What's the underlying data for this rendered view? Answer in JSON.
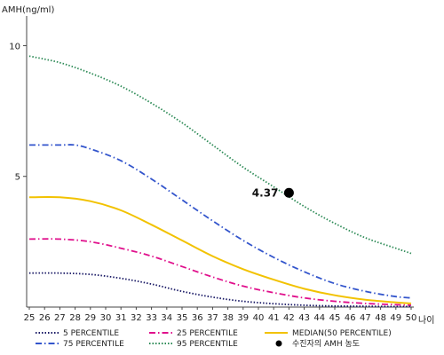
{
  "chart_data": {
    "type": "line",
    "ylabel": "AMH(ng/ml)",
    "xlabel": "나이",
    "xlim": [
      25,
      50
    ],
    "ylim": [
      0,
      11
    ],
    "x_ticks": [
      25,
      26,
      27,
      28,
      29,
      30,
      31,
      32,
      33,
      34,
      35,
      36,
      37,
      38,
      39,
      40,
      41,
      42,
      43,
      44,
      45,
      46,
      47,
      48,
      49,
      50
    ],
    "y_ticks": [
      5,
      10
    ],
    "grid": false,
    "legend_position": "bottom",
    "series": [
      {
        "name": "95 PERCENTILE",
        "color": "#2e8b57",
        "dash": "dotted",
        "x": [
          25,
          27,
          29,
          31,
          33,
          35,
          37,
          39,
          41,
          43,
          45,
          47,
          49,
          50
        ],
        "y": [
          9.6,
          9.35,
          8.95,
          8.45,
          7.8,
          7.05,
          6.2,
          5.35,
          4.6,
          3.85,
          3.2,
          2.65,
          2.25,
          2.05
        ]
      },
      {
        "name": "75 PERCENTILE",
        "color": "#3355cc",
        "dash": "dashdot",
        "x": [
          25,
          27,
          28,
          29,
          31,
          33,
          35,
          37,
          39,
          41,
          43,
          45,
          47,
          49,
          50
        ],
        "y": [
          6.2,
          6.2,
          6.2,
          6.05,
          5.6,
          4.9,
          4.1,
          3.3,
          2.55,
          1.9,
          1.35,
          0.9,
          0.6,
          0.4,
          0.35
        ]
      },
      {
        "name": "MEDIAN(50 PERCENTILE)",
        "color": "#f2c200",
        "dash": "solid",
        "x": [
          25,
          27,
          29,
          31,
          33,
          35,
          37,
          39,
          41,
          43,
          45,
          47,
          49,
          50
        ],
        "y": [
          4.2,
          4.2,
          4.05,
          3.7,
          3.15,
          2.55,
          1.95,
          1.45,
          1.05,
          0.7,
          0.45,
          0.28,
          0.18,
          0.14
        ]
      },
      {
        "name": "25 PERCENTILE",
        "color": "#e0108c",
        "dash": "dashdot",
        "x": [
          25,
          27,
          29,
          31,
          33,
          35,
          37,
          39,
          41,
          43,
          45,
          47,
          49,
          50
        ],
        "y": [
          2.6,
          2.6,
          2.5,
          2.25,
          1.95,
          1.55,
          1.15,
          0.8,
          0.55,
          0.35,
          0.22,
          0.14,
          0.09,
          0.07
        ]
      },
      {
        "name": "5 PERCENTILE",
        "color": "#1a1a66",
        "dash": "dotted",
        "x": [
          25,
          27,
          29,
          31,
          33,
          35,
          37,
          39,
          41,
          43,
          45,
          47,
          49,
          50
        ],
        "y": [
          1.3,
          1.3,
          1.25,
          1.1,
          0.88,
          0.6,
          0.38,
          0.22,
          0.13,
          0.07,
          0.04,
          0.03,
          0.02,
          0.02
        ]
      }
    ],
    "annotations": [
      {
        "name": "수진자의 AMH 농도",
        "x": 42,
        "y": 4.37,
        "label": "4.37",
        "marker": "circle",
        "color": "#000000"
      }
    ],
    "legend": [
      {
        "label": "5 PERCENTILE",
        "color": "#1a1a66",
        "dash": "dotted"
      },
      {
        "label": "25 PERCENTILE",
        "color": "#e0108c",
        "dash": "dashdot"
      },
      {
        "label": "MEDIAN(50 PERCENTILE)",
        "color": "#f2c200",
        "dash": "solid"
      },
      {
        "label": "75 PERCENTILE",
        "color": "#3355cc",
        "dash": "dashdot"
      },
      {
        "label": "95 PERCENTILE",
        "color": "#2e8b57",
        "dash": "dotted"
      },
      {
        "label": "수진자의 AMH 농도",
        "color": "#000000",
        "marker": "circle"
      }
    ]
  }
}
